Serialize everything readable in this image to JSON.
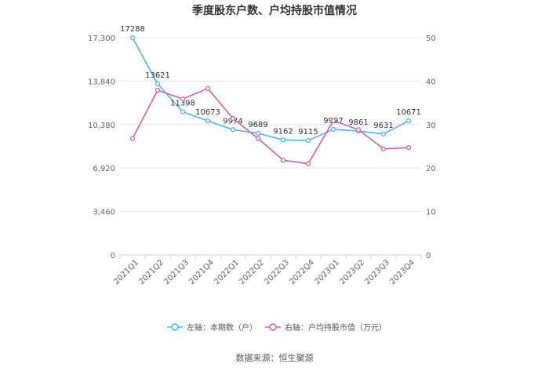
{
  "chart_data": {
    "type": "line",
    "title": "季度股东户数、户均持股市值情况",
    "categories": [
      "2021Q1",
      "2021Q2",
      "2021Q3",
      "2021Q4",
      "2022Q1",
      "2022Q2",
      "2022Q3",
      "2022Q4",
      "2023Q1",
      "2023Q2",
      "2023Q3",
      "2023Q4"
    ],
    "left_axis": {
      "min": 0,
      "max": 17300,
      "ticks": [
        "0",
        "3,460",
        "6,920",
        "10,380",
        "13,840",
        "17,300"
      ]
    },
    "right_axis": {
      "min": 0,
      "max": 50,
      "ticks": [
        "0",
        "10",
        "20",
        "30",
        "40",
        "50"
      ]
    },
    "series": [
      {
        "name": "左轴：本期数（户）",
        "axis": "left",
        "color": "#4db8f0",
        "values": [
          17288,
          13621,
          11398,
          10673,
          9974,
          9689,
          9162,
          9115,
          9997,
          9861,
          9631,
          10671
        ],
        "labels": [
          "17288",
          "13621",
          "11398",
          "10673",
          "9974",
          "9689",
          "9162",
          "9115",
          "9997",
          "9861",
          "9631",
          "10671"
        ]
      },
      {
        "name": "右轴：户均持股市值（万元）",
        "axis": "right",
        "color": "#d35fb0",
        "values": [
          26.8,
          37.9,
          35.9,
          38.3,
          31.4,
          26.8,
          21.8,
          21.0,
          30.9,
          28.8,
          24.4,
          24.7
        ]
      }
    ],
    "grid": true,
    "legend": "bottom"
  },
  "source": "数据来源：恒生聚源"
}
